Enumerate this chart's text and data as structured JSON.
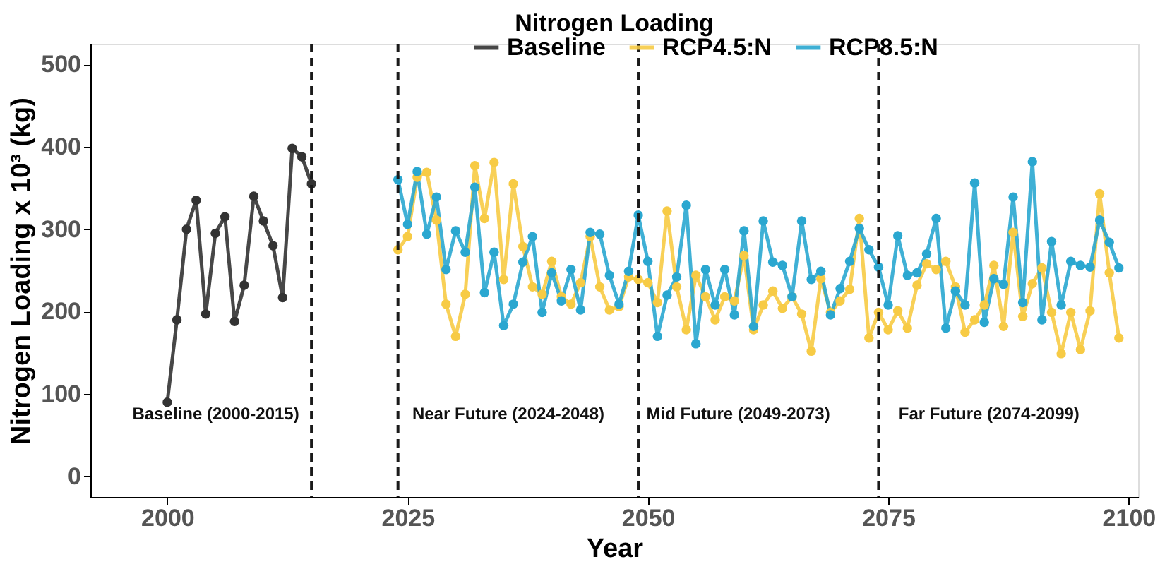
{
  "chart_data": {
    "type": "line",
    "title": "Nitrogen Loading",
    "xlabel": "Year",
    "ylabel": "Nitrogen Loading  x 10³ (kg)",
    "xlim": [
      1992,
      2101
    ],
    "xticks": [
      2000,
      2025,
      2050,
      2075,
      2100
    ],
    "ylim": [
      -25,
      525
    ],
    "yticks": [
      0,
      100,
      200,
      300,
      400,
      500
    ],
    "grid": false,
    "legend": "top",
    "marker": "circle",
    "line_style": "solid",
    "series": [
      {
        "name": "Baseline",
        "color": "#333333",
        "x": [
          2000,
          2001,
          2002,
          2003,
          2004,
          2005,
          2006,
          2007,
          2008,
          2009,
          2010,
          2011,
          2012,
          2013,
          2014,
          2015
        ],
        "values": [
          90,
          190,
          300,
          335,
          197,
          295,
          315,
          188,
          232,
          340,
          310,
          280,
          217,
          398,
          388,
          355
        ]
      },
      {
        "name": "RCP4.5:N",
        "color": "#f7cb45",
        "x": [
          2024,
          2025,
          2026,
          2027,
          2028,
          2029,
          2030,
          2031,
          2032,
          2033,
          2034,
          2035,
          2036,
          2037,
          2038,
          2039,
          2040,
          2041,
          2042,
          2043,
          2044,
          2045,
          2046,
          2047,
          2048,
          2049,
          2050,
          2051,
          2052,
          2053,
          2054,
          2055,
          2056,
          2057,
          2058,
          2059,
          2060,
          2061,
          2062,
          2063,
          2064,
          2065,
          2066,
          2067,
          2068,
          2069,
          2070,
          2071,
          2072,
          2073,
          2074,
          2075,
          2076,
          2077,
          2078,
          2079,
          2080,
          2081,
          2082,
          2083,
          2084,
          2085,
          2086,
          2087,
          2088,
          2089,
          2090,
          2091,
          2092,
          2093,
          2094,
          2095,
          2096,
          2097,
          2098,
          2099
        ],
        "values": [
          275,
          291,
          363,
          369,
          311,
          209,
          170,
          221,
          377,
          313,
          381,
          239,
          355,
          279,
          230,
          221,
          261,
          218,
          209,
          235,
          291,
          230,
          202,
          206,
          242,
          239,
          235,
          211,
          322,
          230,
          178,
          244,
          218,
          190,
          218,
          213,
          268,
          178,
          208,
          225,
          204,
          218,
          197,
          152,
          240,
          199,
          213,
          227,
          313,
          168,
          199,
          178,
          201,
          180,
          232,
          258,
          251,
          261,
          230,
          175,
          190,
          208,
          256,
          182,
          296,
          194,
          234,
          253,
          199,
          149,
          199,
          154,
          201,
          343,
          247,
          168
        ]
      },
      {
        "name": "RCP8.5:N",
        "color": "#2aa7d0",
        "x": [
          2024,
          2025,
          2026,
          2027,
          2028,
          2029,
          2030,
          2031,
          2032,
          2033,
          2034,
          2035,
          2036,
          2037,
          2038,
          2039,
          2040,
          2041,
          2042,
          2043,
          2044,
          2045,
          2046,
          2047,
          2048,
          2049,
          2050,
          2051,
          2052,
          2053,
          2054,
          2055,
          2056,
          2057,
          2058,
          2059,
          2060,
          2061,
          2062,
          2063,
          2064,
          2065,
          2066,
          2067,
          2068,
          2069,
          2070,
          2071,
          2072,
          2073,
          2074,
          2075,
          2076,
          2077,
          2078,
          2079,
          2080,
          2081,
          2082,
          2083,
          2084,
          2085,
          2086,
          2087,
          2088,
          2089,
          2090,
          2091,
          2092,
          2093,
          2094,
          2095,
          2096,
          2097,
          2098,
          2099
        ],
        "values": [
          360,
          306,
          370,
          294,
          339,
          251,
          298,
          272,
          351,
          223,
          272,
          183,
          209,
          260,
          291,
          199,
          247,
          213,
          251,
          202,
          296,
          294,
          244,
          209,
          249,
          317,
          261,
          170,
          220,
          242,
          329,
          161,
          251,
          208,
          251,
          196,
          298,
          182,
          310,
          260,
          256,
          218,
          310,
          239,
          249,
          196,
          228,
          261,
          301,
          275,
          254,
          208,
          292,
          244,
          247,
          270,
          313,
          180,
          225,
          208,
          356,
          187,
          240,
          233,
          339,
          211,
          382,
          190,
          285,
          208,
          261,
          256,
          254,
          311,
          284,
          253
        ]
      }
    ],
    "ref_lines": [
      {
        "axis": "x",
        "value": 2015,
        "line_style": "dashed",
        "color": "#1a1a1a"
      },
      {
        "axis": "x",
        "value": 2024,
        "line_style": "dashed",
        "color": "#1a1a1a"
      },
      {
        "axis": "x",
        "value": 2049,
        "line_style": "dashed",
        "color": "#1a1a1a"
      },
      {
        "axis": "x",
        "value": 2074,
        "line_style": "dashed",
        "color": "#1a1a1a"
      }
    ],
    "annotations": [
      "Baseline (2000-2015)",
      "Near Future (2024-2048)",
      "Mid Future (2049-2073)",
      "Far Future (2074-2099)"
    ]
  }
}
